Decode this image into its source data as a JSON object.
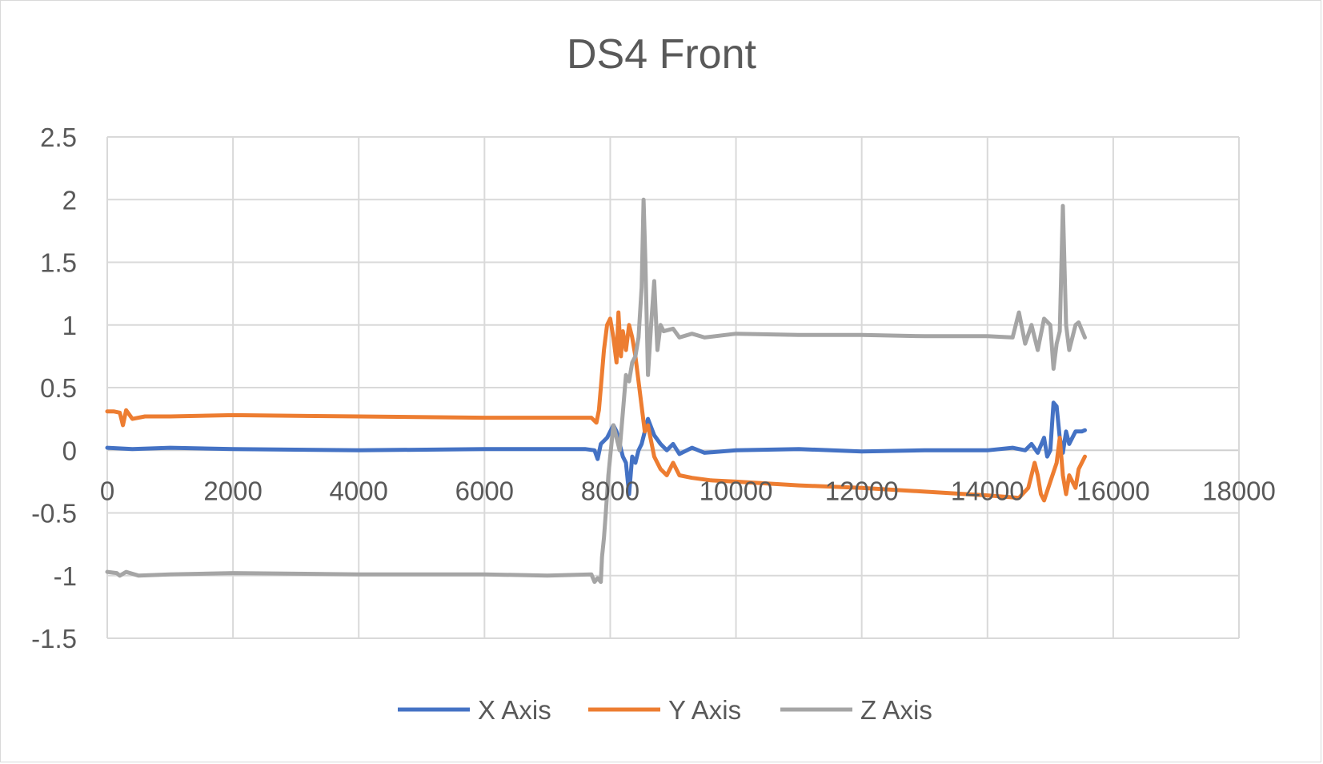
{
  "chart_data": {
    "type": "line",
    "title": "DS4 Front",
    "xlabel": "",
    "ylabel": "",
    "xlim": [
      0,
      18000
    ],
    "ylim": [
      -1.5,
      2.5
    ],
    "x_ticks": [
      0,
      2000,
      4000,
      6000,
      8000,
      10000,
      12000,
      14000,
      16000,
      18000
    ],
    "y_ticks": [
      2.5,
      2,
      1.5,
      1,
      0.5,
      0,
      -0.5,
      -1,
      -1.5
    ],
    "x_tick_labels": [
      "0",
      "2000",
      "4000",
      "6000",
      "8000",
      "10000",
      "12000",
      "14000",
      "16000",
      "18000"
    ],
    "y_tick_labels": [
      "2.5",
      "2",
      "1.5",
      "1",
      "0.5",
      "0",
      "-0.5",
      "-1",
      "-1.5"
    ],
    "grid": true,
    "legend_position": "bottom",
    "series": [
      {
        "name": "X Axis",
        "color": "#4472c4",
        "points": [
          [
            0,
            0.02
          ],
          [
            400,
            0.01
          ],
          [
            1000,
            0.02
          ],
          [
            2000,
            0.01
          ],
          [
            4000,
            0.0
          ],
          [
            6000,
            0.01
          ],
          [
            7600,
            0.01
          ],
          [
            7750,
            0.0
          ],
          [
            7800,
            -0.07
          ],
          [
            7850,
            0.05
          ],
          [
            7950,
            0.1
          ],
          [
            8050,
            0.2
          ],
          [
            8100,
            0.15
          ],
          [
            8150,
            0.05
          ],
          [
            8200,
            -0.05
          ],
          [
            8250,
            -0.1
          ],
          [
            8300,
            -0.35
          ],
          [
            8350,
            -0.05
          ],
          [
            8400,
            -0.1
          ],
          [
            8450,
            0.0
          ],
          [
            8500,
            0.05
          ],
          [
            8600,
            0.25
          ],
          [
            8700,
            0.12
          ],
          [
            8800,
            0.05
          ],
          [
            8900,
            0.0
          ],
          [
            9000,
            0.05
          ],
          [
            9100,
            -0.03
          ],
          [
            9300,
            0.02
          ],
          [
            9500,
            -0.02
          ],
          [
            10000,
            0.0
          ],
          [
            11000,
            0.01
          ],
          [
            12000,
            -0.01
          ],
          [
            13000,
            0.0
          ],
          [
            14000,
            0.0
          ],
          [
            14400,
            0.02
          ],
          [
            14600,
            0.0
          ],
          [
            14700,
            0.05
          ],
          [
            14800,
            -0.02
          ],
          [
            14900,
            0.1
          ],
          [
            14950,
            -0.05
          ],
          [
            15000,
            0.0
          ],
          [
            15050,
            0.38
          ],
          [
            15100,
            0.35
          ],
          [
            15150,
            0.1
          ],
          [
            15200,
            -0.02
          ],
          [
            15250,
            0.15
          ],
          [
            15300,
            0.05
          ],
          [
            15350,
            0.1
          ],
          [
            15400,
            0.15
          ],
          [
            15500,
            0.15
          ],
          [
            15550,
            0.16
          ]
        ]
      },
      {
        "name": "Y Axis",
        "color": "#ed7d31",
        "points": [
          [
            0,
            0.31
          ],
          [
            100,
            0.31
          ],
          [
            200,
            0.3
          ],
          [
            250,
            0.2
          ],
          [
            300,
            0.32
          ],
          [
            400,
            0.25
          ],
          [
            600,
            0.27
          ],
          [
            1000,
            0.27
          ],
          [
            2000,
            0.28
          ],
          [
            4000,
            0.27
          ],
          [
            6000,
            0.26
          ],
          [
            7000,
            0.26
          ],
          [
            7700,
            0.26
          ],
          [
            7780,
            0.22
          ],
          [
            7820,
            0.32
          ],
          [
            7850,
            0.5
          ],
          [
            7900,
            0.8
          ],
          [
            7950,
            1.0
          ],
          [
            8000,
            1.05
          ],
          [
            8050,
            0.9
          ],
          [
            8100,
            0.7
          ],
          [
            8130,
            1.1
          ],
          [
            8170,
            0.75
          ],
          [
            8200,
            0.95
          ],
          [
            8250,
            0.8
          ],
          [
            8300,
            1.0
          ],
          [
            8350,
            0.9
          ],
          [
            8400,
            0.75
          ],
          [
            8450,
            0.55
          ],
          [
            8500,
            0.35
          ],
          [
            8550,
            0.15
          ],
          [
            8600,
            0.2
          ],
          [
            8700,
            -0.05
          ],
          [
            8800,
            -0.15
          ],
          [
            8900,
            -0.2
          ],
          [
            9000,
            -0.1
          ],
          [
            9100,
            -0.2
          ],
          [
            9300,
            -0.22
          ],
          [
            9600,
            -0.24
          ],
          [
            10000,
            -0.25
          ],
          [
            11000,
            -0.28
          ],
          [
            12000,
            -0.3
          ],
          [
            13000,
            -0.33
          ],
          [
            14000,
            -0.36
          ],
          [
            14500,
            -0.38
          ],
          [
            14650,
            -0.3
          ],
          [
            14750,
            -0.1
          ],
          [
            14800,
            -0.2
          ],
          [
            14850,
            -0.35
          ],
          [
            14900,
            -0.4
          ],
          [
            15000,
            -0.25
          ],
          [
            15100,
            -0.1
          ],
          [
            15150,
            0.1
          ],
          [
            15200,
            -0.2
          ],
          [
            15250,
            -0.35
          ],
          [
            15300,
            -0.2
          ],
          [
            15400,
            -0.3
          ],
          [
            15450,
            -0.15
          ],
          [
            15550,
            -0.05
          ]
        ]
      },
      {
        "name": "Z Axis",
        "color": "#a5a5a5",
        "points": [
          [
            0,
            -0.97
          ],
          [
            150,
            -0.98
          ],
          [
            200,
            -1.0
          ],
          [
            300,
            -0.97
          ],
          [
            500,
            -1.0
          ],
          [
            1000,
            -0.99
          ],
          [
            2000,
            -0.98
          ],
          [
            4000,
            -0.99
          ],
          [
            6000,
            -0.99
          ],
          [
            7000,
            -1.0
          ],
          [
            7700,
            -0.99
          ],
          [
            7750,
            -1.05
          ],
          [
            7800,
            -1.02
          ],
          [
            7850,
            -1.05
          ],
          [
            7870,
            -0.85
          ],
          [
            7900,
            -0.7
          ],
          [
            7930,
            -0.5
          ],
          [
            7970,
            -0.2
          ],
          [
            8000,
            -0.05
          ],
          [
            8050,
            0.2
          ],
          [
            8100,
            0.1
          ],
          [
            8150,
            0.0
          ],
          [
            8200,
            0.3
          ],
          [
            8250,
            0.6
          ],
          [
            8300,
            0.55
          ],
          [
            8350,
            0.7
          ],
          [
            8400,
            0.75
          ],
          [
            8450,
            0.9
          ],
          [
            8500,
            1.3
          ],
          [
            8530,
            2.0
          ],
          [
            8560,
            1.5
          ],
          [
            8600,
            0.6
          ],
          [
            8650,
            1.0
          ],
          [
            8700,
            1.35
          ],
          [
            8750,
            0.8
          ],
          [
            8800,
            1.0
          ],
          [
            8850,
            0.95
          ],
          [
            9000,
            0.97
          ],
          [
            9100,
            0.9
          ],
          [
            9300,
            0.93
          ],
          [
            9500,
            0.9
          ],
          [
            10000,
            0.93
          ],
          [
            11000,
            0.92
          ],
          [
            12000,
            0.92
          ],
          [
            13000,
            0.91
          ],
          [
            14000,
            0.91
          ],
          [
            14400,
            0.9
          ],
          [
            14500,
            1.1
          ],
          [
            14600,
            0.85
          ],
          [
            14700,
            1.0
          ],
          [
            14800,
            0.8
          ],
          [
            14900,
            1.05
          ],
          [
            15000,
            1.0
          ],
          [
            15050,
            0.65
          ],
          [
            15100,
            0.85
          ],
          [
            15150,
            0.95
          ],
          [
            15200,
            1.95
          ],
          [
            15250,
            1.0
          ],
          [
            15300,
            0.8
          ],
          [
            15400,
            1.0
          ],
          [
            15450,
            1.02
          ],
          [
            15550,
            0.9
          ]
        ]
      }
    ]
  }
}
